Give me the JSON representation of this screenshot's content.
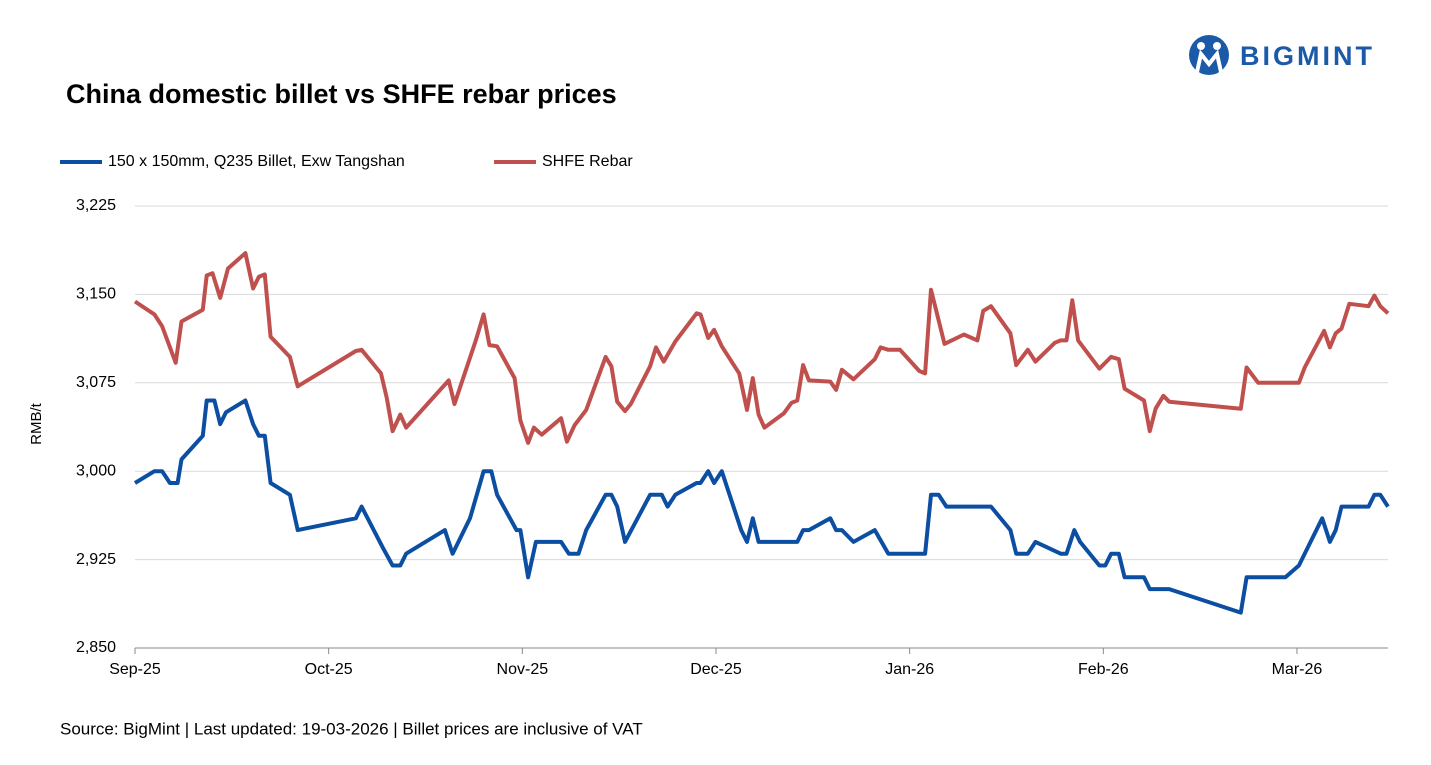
{
  "brand": "BIGMINT",
  "chart_data": {
    "type": "line",
    "title": "China domestic billet vs SHFE rebar prices",
    "y_label": "RMB/t",
    "source": "Source: BigMint | Last updated: 19-03-2026 | Billet prices are inclusive of VAT",
    "xlim": [
      0,
      6.47
    ],
    "xticks": [
      {
        "value": 0,
        "label": "Sep-25"
      },
      {
        "value": 1,
        "label": "Oct-25"
      },
      {
        "value": 2,
        "label": "Nov-25"
      },
      {
        "value": 3,
        "label": "Dec-25"
      },
      {
        "value": 4,
        "label": "Jan-26"
      },
      {
        "value": 5,
        "label": "Feb-26"
      },
      {
        "value": 6,
        "label": "Mar-26"
      }
    ],
    "ylim": [
      2850,
      3225
    ],
    "yticks": [
      {
        "value": 2850,
        "label": "2,850"
      },
      {
        "value": 2925,
        "label": "2,925"
      },
      {
        "value": 3000,
        "label": "3,000"
      },
      {
        "value": 3075,
        "label": "3,075"
      },
      {
        "value": 3150,
        "label": "3,150"
      },
      {
        "value": 3225,
        "label": "3,225"
      }
    ],
    "grid": true,
    "legend": "top-left",
    "series": [
      {
        "name": "150 x 150mm, Q235 Billet, Exw Tangshan",
        "color": "#0b4ea2",
        "x": [
          0,
          0.1,
          0.14,
          0.18,
          0.22,
          0.24,
          0.35,
          0.37,
          0.41,
          0.44,
          0.47,
          0.57,
          0.61,
          0.64,
          0.67,
          0.7,
          0.8,
          0.84,
          1.14,
          1.17,
          1.28,
          1.33,
          1.37,
          1.4,
          1.6,
          1.64,
          1.73,
          1.8,
          1.84,
          1.87,
          1.97,
          1.99,
          2.03,
          2.07,
          2.2,
          2.24,
          2.29,
          2.33,
          2.43,
          2.46,
          2.49,
          2.53,
          2.66,
          2.72,
          2.75,
          2.79,
          2.9,
          2.92,
          2.96,
          2.99,
          3.03,
          3.13,
          3.16,
          3.19,
          3.22,
          3.42,
          3.45,
          3.48,
          3.59,
          3.62,
          3.65,
          3.71,
          3.82,
          3.89,
          4.08,
          4.11,
          4.15,
          4.19,
          4.42,
          4.52,
          4.55,
          4.61,
          4.65,
          4.78,
          4.81,
          4.85,
          4.88,
          4.98,
          5.01,
          5.04,
          5.08,
          5.11,
          5.21,
          5.24,
          5.34,
          5.71,
          5.74,
          5.94,
          6.01,
          6.13,
          6.17,
          6.2,
          6.23,
          6.37,
          6.4,
          6.43,
          6.47
        ],
        "values": [
          2990,
          3000,
          3000,
          2990,
          2990,
          3010,
          3030,
          3060,
          3060,
          3040,
          3050,
          3060,
          3040,
          3030,
          3030,
          2990,
          2980,
          2950,
          2960,
          2970,
          2935,
          2920,
          2920,
          2930,
          2950,
          2930,
          2960,
          3000,
          3000,
          2980,
          2950,
          2950,
          2910,
          2940,
          2940,
          2930,
          2930,
          2950,
          2980,
          2980,
          2970,
          2940,
          2980,
          2980,
          2970,
          2980,
          2990,
          2990,
          3000,
          2990,
          3000,
          2950,
          2940,
          2960,
          2940,
          2940,
          2950,
          2950,
          2960,
          2950,
          2950,
          2940,
          2950,
          2930,
          2930,
          2980,
          2980,
          2970,
          2970,
          2950,
          2930,
          2930,
          2940,
          2930,
          2930,
          2950,
          2940,
          2920,
          2920,
          2930,
          2930,
          2910,
          2910,
          2900,
          2900,
          2880,
          2910,
          2910,
          2920,
          2960,
          2940,
          2950,
          2970,
          2970,
          2980,
          2980,
          2970
        ]
      },
      {
        "name": "SHFE Rebar",
        "color": "#c0504d",
        "x": [
          0,
          0.1,
          0.14,
          0.21,
          0.24,
          0.35,
          0.37,
          0.4,
          0.44,
          0.48,
          0.57,
          0.61,
          0.64,
          0.67,
          0.7,
          0.8,
          0.84,
          1.14,
          1.17,
          1.27,
          1.3,
          1.33,
          1.37,
          1.4,
          1.62,
          1.65,
          1.76,
          1.8,
          1.83,
          1.87,
          1.96,
          1.99,
          2.03,
          2.06,
          2.1,
          2.2,
          2.23,
          2.27,
          2.33,
          2.43,
          2.46,
          2.49,
          2.53,
          2.56,
          2.66,
          2.69,
          2.73,
          2.79,
          2.9,
          2.92,
          2.96,
          2.99,
          3.03,
          3.12,
          3.16,
          3.19,
          3.22,
          3.25,
          3.35,
          3.39,
          3.42,
          3.45,
          3.48,
          3.59,
          3.62,
          3.65,
          3.71,
          3.82,
          3.85,
          3.89,
          3.95,
          4.05,
          4.08,
          4.11,
          4.18,
          4.28,
          4.35,
          4.38,
          4.42,
          4.52,
          4.55,
          4.61,
          4.65,
          4.75,
          4.78,
          4.81,
          4.84,
          4.87,
          4.98,
          5.04,
          5.08,
          5.11,
          5.21,
          5.24,
          5.27,
          5.31,
          5.34,
          5.71,
          5.74,
          5.8,
          5.94,
          6.01,
          6.04,
          6.14,
          6.17,
          6.2,
          6.23,
          6.27,
          6.37,
          6.4,
          6.43,
          6.47
        ],
        "values": [
          3144,
          3133,
          3123,
          3092,
          3127,
          3137,
          3166,
          3168,
          3147,
          3172,
          3185,
          3155,
          3165,
          3167,
          3114,
          3097,
          3072,
          3102,
          3103,
          3083,
          3062,
          3034,
          3048,
          3037,
          3077,
          3057,
          3111,
          3133,
          3107,
          3106,
          3079,
          3043,
          3024,
          3037,
          3031,
          3045,
          3025,
          3039,
          3052,
          3097,
          3089,
          3059,
          3051,
          3057,
          3089,
          3105,
          3093,
          3110,
          3134,
          3133,
          3113,
          3120,
          3106,
          3083,
          3052,
          3079,
          3048,
          3037,
          3049,
          3058,
          3060,
          3090,
          3077,
          3076,
          3069,
          3086,
          3078,
          3095,
          3105,
          3103,
          3103,
          3085,
          3083,
          3154,
          3108,
          3116,
          3111,
          3136,
          3140,
          3117,
          3090,
          3103,
          3093,
          3109,
          3111,
          3111,
          3145,
          3111,
          3087,
          3097,
          3095,
          3070,
          3060,
          3034,
          3053,
          3064,
          3059,
          3053,
          3088,
          3075,
          3075,
          3075,
          3088,
          3119,
          3105,
          3117,
          3121,
          3142,
          3140,
          3149,
          3140,
          3134
        ]
      }
    ]
  }
}
